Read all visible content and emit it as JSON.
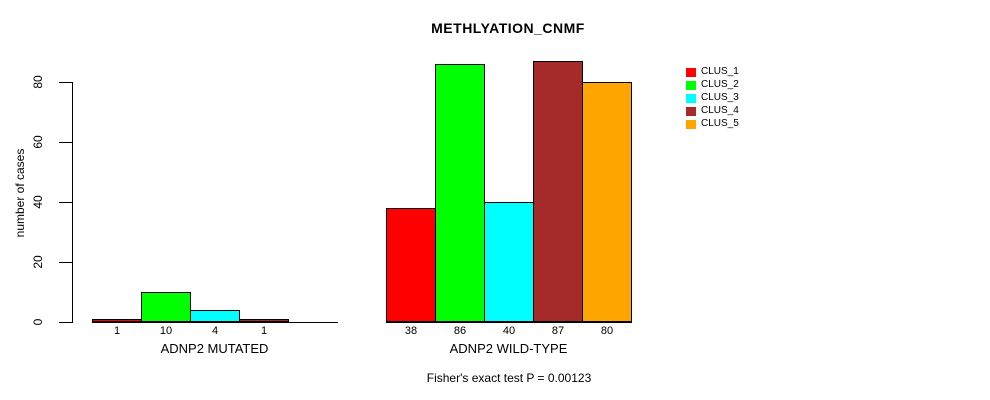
{
  "chart_data": {
    "type": "bar",
    "title": "METHLYATION_CNMF",
    "ylabel": "number of cases",
    "xlabel": "",
    "ylim": [
      0,
      80
    ],
    "yticks": [
      0,
      20,
      40,
      60,
      80
    ],
    "grid": false,
    "legend_position": "right",
    "legend": [
      {
        "label": "CLUS_1",
        "color": "#ff0000"
      },
      {
        "label": "CLUS_2",
        "color": "#00ff00"
      },
      {
        "label": "CLUS_3",
        "color": "#00ffff"
      },
      {
        "label": "CLUS_4",
        "color": "#a52a2a"
      },
      {
        "label": "CLUS_5",
        "color": "#ffa500"
      }
    ],
    "groups": [
      {
        "label": "ADNP2 MUTATED",
        "series_names": [
          "CLUS_1",
          "CLUS_2",
          "CLUS_3",
          "CLUS_4",
          "CLUS_5"
        ],
        "values": [
          1,
          10,
          4,
          1,
          0
        ],
        "bar_labels": [
          "1",
          "10",
          "4",
          "1",
          ""
        ]
      },
      {
        "label": "ADNP2 WILD-TYPE",
        "series_names": [
          "CLUS_1",
          "CLUS_2",
          "CLUS_3",
          "CLUS_4",
          "CLUS_5"
        ],
        "values": [
          38,
          86,
          40,
          87,
          80
        ],
        "bar_labels": [
          "38",
          "86",
          "40",
          "87",
          "80"
        ]
      }
    ],
    "footnote": "Fisher's exact test P = 0.00123"
  }
}
